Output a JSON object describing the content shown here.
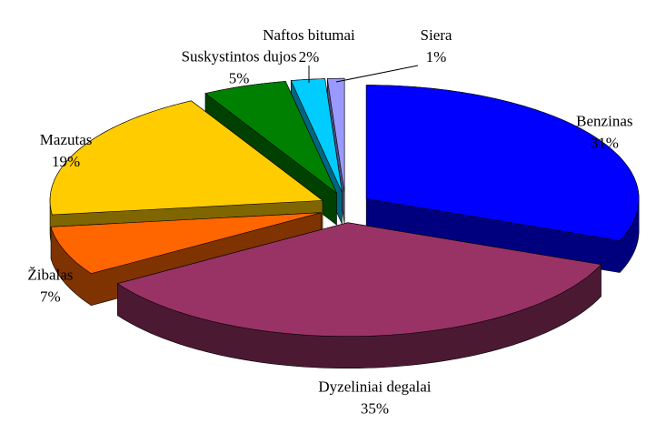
{
  "chart_data": {
    "type": "pie",
    "categories": [
      "Benzinas",
      "Dyzeliniai degalai",
      "Žibalas",
      "Mazutas",
      "Suskystintos dujos",
      "Naftos bitumai",
      "Siera"
    ],
    "values": [
      31,
      35,
      7,
      19,
      5,
      2,
      1
    ],
    "value_labels": [
      "31%",
      "35%",
      "7%",
      "19%",
      "5%",
      "2%",
      "1%"
    ],
    "colors": [
      "#0000ff",
      "#993366",
      "#ff6600",
      "#ffcc00",
      "#008000",
      "#00ccff",
      "#9999ff"
    ]
  }
}
